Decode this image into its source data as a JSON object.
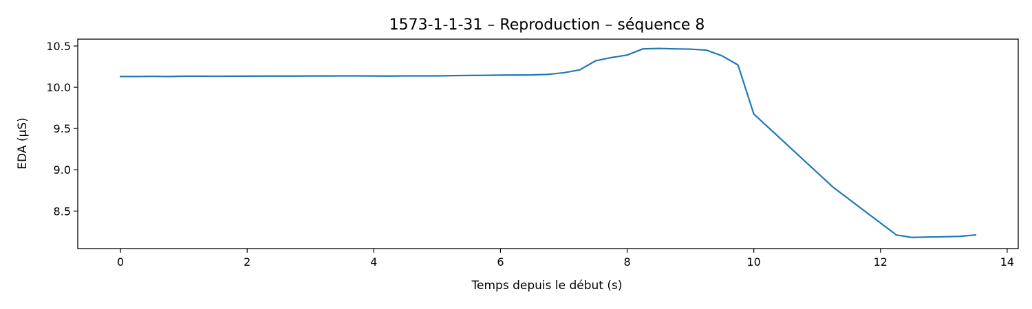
{
  "chart_data": {
    "type": "line",
    "title": "1573-1-1-31 – Reproduction – séquence 8",
    "xlabel": "Temps depuis le début (s)",
    "ylabel": "EDA (µS)",
    "xlim": [
      -0.675,
      14.175
    ],
    "ylim": [
      8.045,
      10.583
    ],
    "xticks": [
      0,
      2,
      4,
      6,
      8,
      10,
      12,
      14
    ],
    "yticks": [
      8.5,
      9.0,
      9.5,
      10.0,
      10.5
    ],
    "xtick_labels": [
      "0",
      "2",
      "4",
      "6",
      "8",
      "10",
      "12",
      "14"
    ],
    "ytick_labels": [
      "8.5",
      "9.0",
      "9.5",
      "10.0",
      "10.5"
    ],
    "grid": false,
    "legend": false,
    "series": [
      {
        "color": "#1f77b4",
        "x": [
          0,
          0.25,
          0.5,
          0.75,
          1.0,
          1.25,
          1.5,
          1.75,
          2.0,
          2.25,
          2.5,
          2.75,
          3.0,
          3.25,
          3.5,
          3.75,
          4.0,
          4.25,
          4.5,
          4.75,
          5.0,
          5.25,
          5.5,
          5.75,
          6.0,
          6.25,
          6.5,
          6.75,
          7.0,
          7.25,
          7.5,
          7.75,
          8.0,
          8.25,
          8.5,
          8.75,
          9.0,
          9.25,
          9.5,
          9.75,
          10.0,
          11.25,
          12.25,
          12.5,
          12.75,
          13.0,
          13.25,
          13.5
        ],
        "values": [
          10.13,
          10.13,
          10.132,
          10.13,
          10.134,
          10.134,
          10.133,
          10.134,
          10.135,
          10.136,
          10.136,
          10.136,
          10.137,
          10.137,
          10.138,
          10.138,
          10.137,
          10.136,
          10.138,
          10.138,
          10.138,
          10.141,
          10.143,
          10.144,
          10.147,
          10.148,
          10.149,
          10.156,
          10.176,
          10.21,
          10.32,
          10.36,
          10.39,
          10.465,
          10.47,
          10.465,
          10.462,
          10.45,
          10.38,
          10.27,
          9.675,
          8.79,
          8.21,
          8.18,
          8.185,
          8.188,
          8.193,
          8.21
        ]
      }
    ]
  }
}
